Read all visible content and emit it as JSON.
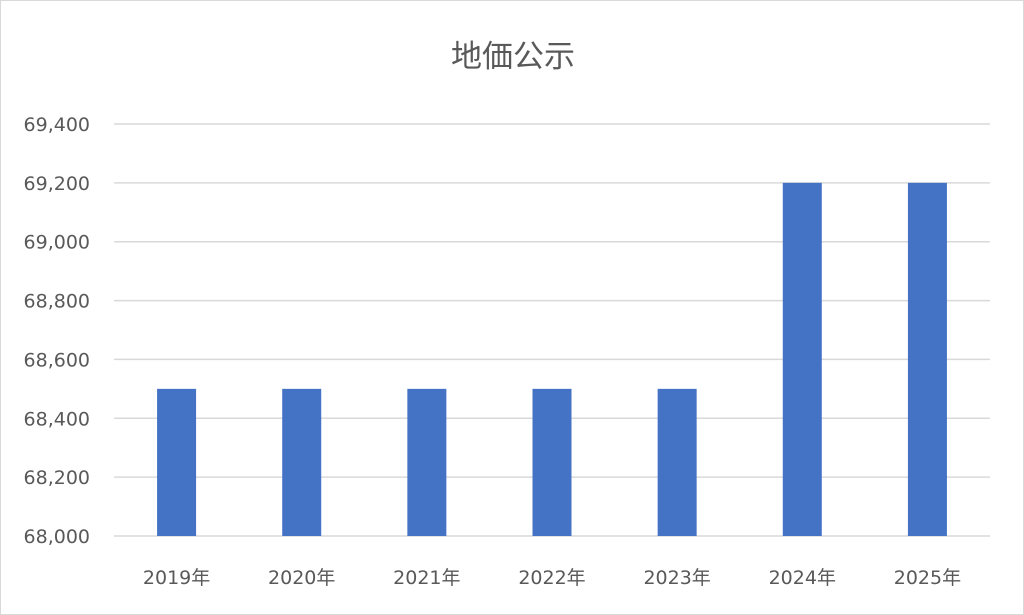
{
  "chart_data": {
    "type": "bar",
    "title": "地価公示",
    "categories": [
      "2019年",
      "2020年",
      "2021年",
      "2022年",
      "2023年",
      "2024年",
      "2025年"
    ],
    "values": [
      68500,
      68500,
      68500,
      68500,
      68500,
      69200,
      69200
    ],
    "ylim": [
      68000,
      69400
    ],
    "yticks": [
      "68,000",
      "68,200",
      "68,400",
      "68,600",
      "68,800",
      "69,000",
      "69,200",
      "69,400"
    ],
    "ytick_values": [
      68000,
      68200,
      68400,
      68600,
      68800,
      69000,
      69200,
      69400
    ],
    "grid": true,
    "bar_color": "#4472c4",
    "grid_color": "#d9d9d9",
    "text_color": "#595959"
  }
}
